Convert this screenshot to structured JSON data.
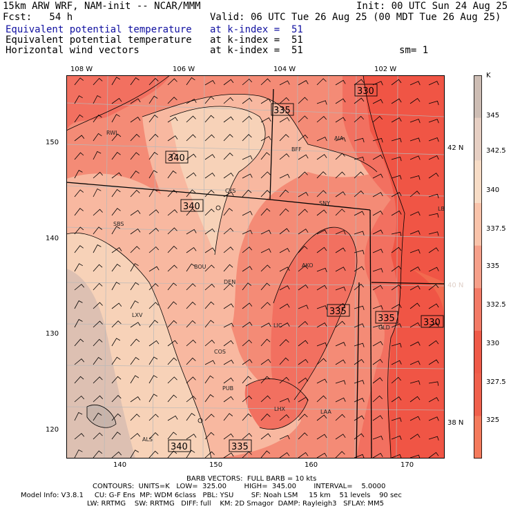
{
  "header": {
    "line1_left": "15km ARW WRF, NAM-init -- NCAR/MMM",
    "line1_right": "Init: 00 UTC Sun 24 Aug 25",
    "fcst_label": "Fcst:   54 h",
    "valid": "Valid: 06 UTC Tue 26 Aug 25 (00 MDT Tue 26 Aug 25)",
    "field1": "Equivalent potential temperature",
    "field1_level": "at k-index =  51",
    "field2": "Equivalent potential temperature",
    "field2_level": "at k-index =  51",
    "field3": "Horizontal wind vectors",
    "field3_level": "at k-index =  51",
    "smooth": "sm= 1"
  },
  "map": {
    "top_lon_labels": [
      "108 W",
      "106 W",
      "104 W",
      "102 W"
    ],
    "left_y_ticks": [
      "150",
      "140",
      "130",
      "120"
    ],
    "bottom_x_ticks": [
      "140",
      "150",
      "160",
      "170"
    ],
    "right_lat_labels": [
      "42 N",
      "40 N",
      "38 N"
    ],
    "stations": [
      "RWL",
      "BFF",
      "AIA",
      "CYS",
      "SNY",
      "LBF",
      "SBS",
      "BOU",
      "DEN",
      "AKO",
      "LXV",
      "LIC",
      "GLD",
      "COS",
      "PUB",
      "LHX",
      "LAA",
      "ALS"
    ],
    "contour_labels": [
      "330",
      "335",
      "340",
      "340",
      "335",
      "335",
      "330",
      "340",
      "335"
    ],
    "colors": {
      "c_325": "#f26a4e",
      "c_330": "#f05545",
      "c_332": "#f27060",
      "c_335": "#f48b76",
      "c_337": "#f8b8a0",
      "c_340": "#f7d2b8",
      "c_342": "#ddc0b2",
      "c_345": "#c8b4aa"
    }
  },
  "colorbar": {
    "unit": "K",
    "labels": [
      "345",
      "342.5",
      "340",
      "337.5",
      "335",
      "332.5",
      "330",
      "327.5",
      "325"
    ],
    "colors": [
      "#cdbdb4",
      "#e6cfc3",
      "#f7dcc6",
      "#f9c3aa",
      "#f6a08a",
      "#f37a66",
      "#ef5a48",
      "#f0604c",
      "#f47a5c"
    ]
  },
  "footer": {
    "barb": "BARB VECTORS:  FULL BARB = 10 kts",
    "contours": "CONTOURS:  UNITS=K   LOW=  325.00        HIGH=  345.00        INTERVAL=    5.0000",
    "model1": "Model Info: V3.8.1     CU: G-F Ens  MP: WDM 6class   PBL: YSU        SF: Noah LSM     15 km    51 levels    90 sec",
    "model2": "LW: RRTMG    SW: RRTMG   DIFF: full    KM: 2D Smagor  DAMP: Rayleigh3   SFLAY: MM5"
  }
}
